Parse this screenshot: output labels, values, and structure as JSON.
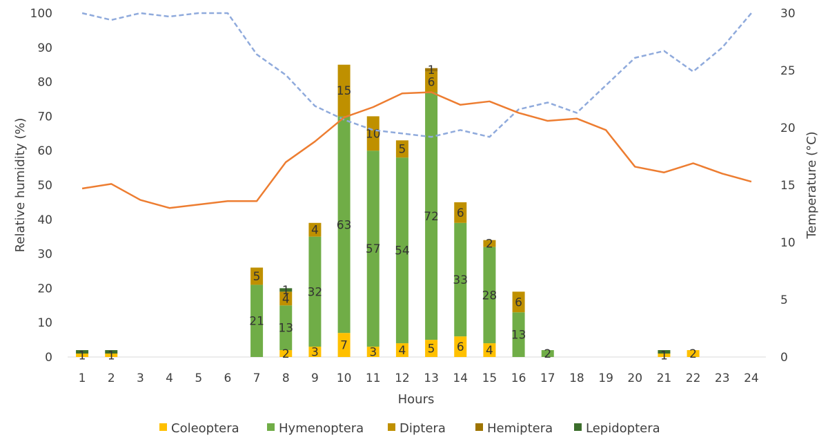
{
  "chart_data": {
    "type": "bar",
    "stacked": true,
    "title": "",
    "categories": [
      "1",
      "2",
      "3",
      "4",
      "5",
      "6",
      "7",
      "8",
      "9",
      "10",
      "11",
      "12",
      "13",
      "14",
      "15",
      "16",
      "17",
      "18",
      "19",
      "20",
      "21",
      "22",
      "23",
      "24"
    ],
    "xlabel": "Hours",
    "ylabel": "Relative humidity (%)",
    "ylim": [
      0,
      100
    ],
    "yticks": [
      "0",
      "10",
      "20",
      "30",
      "40",
      "50",
      "60",
      "70",
      "80",
      "90",
      "100"
    ],
    "y2label": "Temperature (°C)",
    "y2lim": [
      0,
      30
    ],
    "y2ticks": [
      "0",
      "5",
      "10",
      "15",
      "20",
      "25",
      "30"
    ],
    "legend_position": "bottom",
    "series": [
      {
        "name": "Coleoptera",
        "color": "#FFC000",
        "values": [
          1,
          1,
          0,
          0,
          0,
          0,
          0,
          2,
          3,
          7,
          3,
          4,
          5,
          6,
          4,
          0,
          0,
          0,
          0,
          0,
          1,
          2,
          0,
          0
        ]
      },
      {
        "name": "Hymenoptera",
        "color": "#70AD47",
        "values": [
          0,
          0,
          0,
          0,
          0,
          0,
          21,
          13,
          32,
          63,
          57,
          54,
          72,
          33,
          28,
          13,
          2,
          0,
          0,
          0,
          0,
          0,
          0,
          0
        ]
      },
      {
        "name": "Diptera",
        "color": "#BF9000",
        "values": [
          0,
          0,
          0,
          0,
          0,
          0,
          5,
          4,
          4,
          15,
          10,
          5,
          6,
          6,
          2,
          6,
          0,
          0,
          0,
          0,
          0,
          0,
          0,
          0
        ]
      },
      {
        "name": "Hemiptera",
        "color": "#9E7400",
        "values": [
          0,
          0,
          0,
          0,
          0,
          0,
          0,
          0,
          0,
          0,
          0,
          0,
          1,
          0,
          0,
          0,
          0,
          0,
          0,
          0,
          0,
          0,
          0,
          0
        ]
      },
      {
        "name": "Lepidoptera",
        "color": "#3C6E2C",
        "values": [
          1,
          1,
          0,
          0,
          0,
          0,
          0,
          1,
          0,
          0,
          0,
          0,
          0,
          0,
          0,
          0,
          0,
          0,
          0,
          0,
          1,
          0,
          0,
          0
        ]
      }
    ],
    "lines": [
      {
        "name": "Relative humidity",
        "axis": "left",
        "color": "#8FAADC",
        "dashed": true,
        "values": [
          100,
          98,
          100,
          99,
          100,
          100,
          88,
          82,
          73,
          69,
          66,
          65,
          64,
          66,
          64,
          72,
          74,
          71,
          79,
          87,
          89,
          83,
          90,
          100
        ]
      },
      {
        "name": "Temperature",
        "axis": "right",
        "color": "#ED7D31",
        "dashed": false,
        "values": [
          14.7,
          15.1,
          13.7,
          13.0,
          13.3,
          13.6,
          13.6,
          17.0,
          18.8,
          20.9,
          21.8,
          23.0,
          23.1,
          22.0,
          22.3,
          21.3,
          20.6,
          20.8,
          19.8,
          16.6,
          16.1,
          16.9,
          16.0,
          15.3
        ]
      }
    ],
    "data_labels": {
      "Coleoptera": [
        "1",
        "1",
        "",
        "",
        "",
        "",
        "",
        "2",
        "3",
        "7",
        "3",
        "4",
        "5",
        "6",
        "4",
        "",
        "",
        "",
        "",
        "",
        "1",
        "2",
        "",
        ""
      ],
      "Hymenoptera": [
        "",
        "",
        "",
        "",
        "",
        "",
        "21",
        "13",
        "32",
        "63",
        "57",
        "54",
        "72",
        "33",
        "28",
        "13",
        "2",
        "",
        "",
        "",
        "",
        "",
        "",
        ""
      ],
      "Diptera": [
        "",
        "",
        "",
        "",
        "",
        "",
        "5",
        "4",
        "4",
        "15",
        "10",
        "5",
        "6",
        "6",
        "2",
        "6",
        "",
        "",
        "",
        "",
        "",
        "",
        "",
        ""
      ],
      "Hemiptera": [
        "",
        "",
        "",
        "",
        "",
        "",
        "",
        "",
        "",
        "",
        "",
        "",
        "1",
        "",
        "",
        "",
        "",
        "",
        "",
        "",
        "",
        "",
        "",
        ""
      ],
      "Lepidoptera": [
        "",
        "",
        "",
        "",
        "",
        "",
        "",
        "1",
        "",
        "",
        "",
        "",
        "",
        "",
        "",
        "",
        "",
        "",
        "",
        "",
        "",
        "",
        "",
        ""
      ]
    }
  }
}
